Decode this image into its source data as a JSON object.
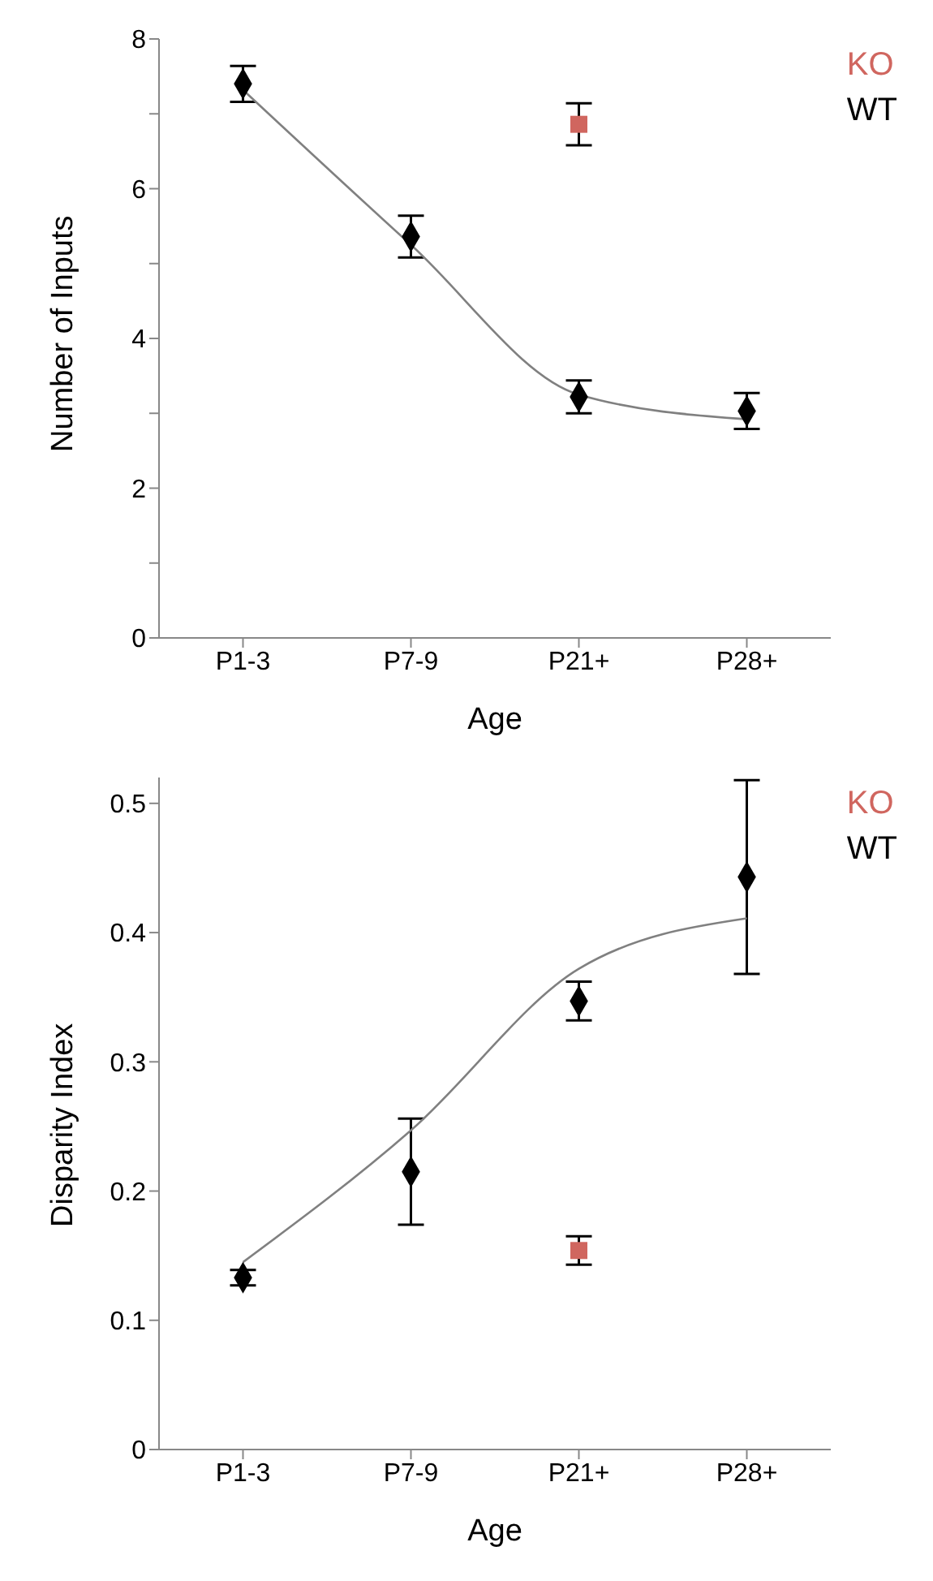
{
  "chart_data": [
    {
      "type": "scatter",
      "xlabel": "Age",
      "ylabel": "Number of Inputs",
      "categories": [
        "P1-3",
        "P7-9",
        "P21+",
        "P28+"
      ],
      "ylim": [
        0,
        8
      ],
      "yticks": [
        0,
        {
          "value": 1,
          "label": null
        },
        2,
        {
          "value": 3,
          "label": null
        },
        4,
        {
          "value": 5,
          "label": null
        },
        6,
        {
          "value": 7,
          "label": null
        },
        8
      ],
      "legend": "top right",
      "grid": false,
      "series": [
        {
          "name": "KO",
          "color": "#d0665f",
          "marker": "square",
          "values": [
            null,
            null,
            6.86,
            null
          ],
          "errors": [
            null,
            null,
            0.28,
            null
          ]
        },
        {
          "name": "WT",
          "color": "#000000",
          "marker": "diamond",
          "values": [
            7.4,
            5.36,
            3.22,
            3.03
          ],
          "errors": [
            0.24,
            0.28,
            0.22,
            0.24
          ]
        },
        {
          "type": "line",
          "color": "#808080",
          "marker": "none",
          "line_style": "solid",
          "values": [
            7.32,
            5.25,
            3.25,
            2.92
          ]
        }
      ]
    },
    {
      "type": "scatter",
      "xlabel": "Age",
      "ylabel": "Disparity Index",
      "categories": [
        "P1-3",
        "P7-9",
        "P21+",
        "P28+"
      ],
      "ylim": [
        0,
        0.52
      ],
      "yticks": [
        0,
        0.1,
        0.2,
        0.3,
        0.4,
        0.5
      ],
      "legend": "top right",
      "grid": false,
      "series": [
        {
          "name": "KO",
          "color": "#d0665f",
          "marker": "square",
          "values": [
            null,
            null,
            0.154,
            null
          ],
          "errors": [
            null,
            null,
            0.011,
            null
          ]
        },
        {
          "name": "WT",
          "color": "#000000",
          "marker": "diamond",
          "values": [
            0.133,
            0.215,
            0.347,
            0.443
          ],
          "errors": [
            0.006,
            0.041,
            0.015,
            0.075
          ]
        },
        {
          "type": "line",
          "color": "#808080",
          "marker": "none",
          "line_style": "solid",
          "values": [
            0.145,
            0.247,
            0.372,
            0.411
          ]
        }
      ]
    }
  ]
}
